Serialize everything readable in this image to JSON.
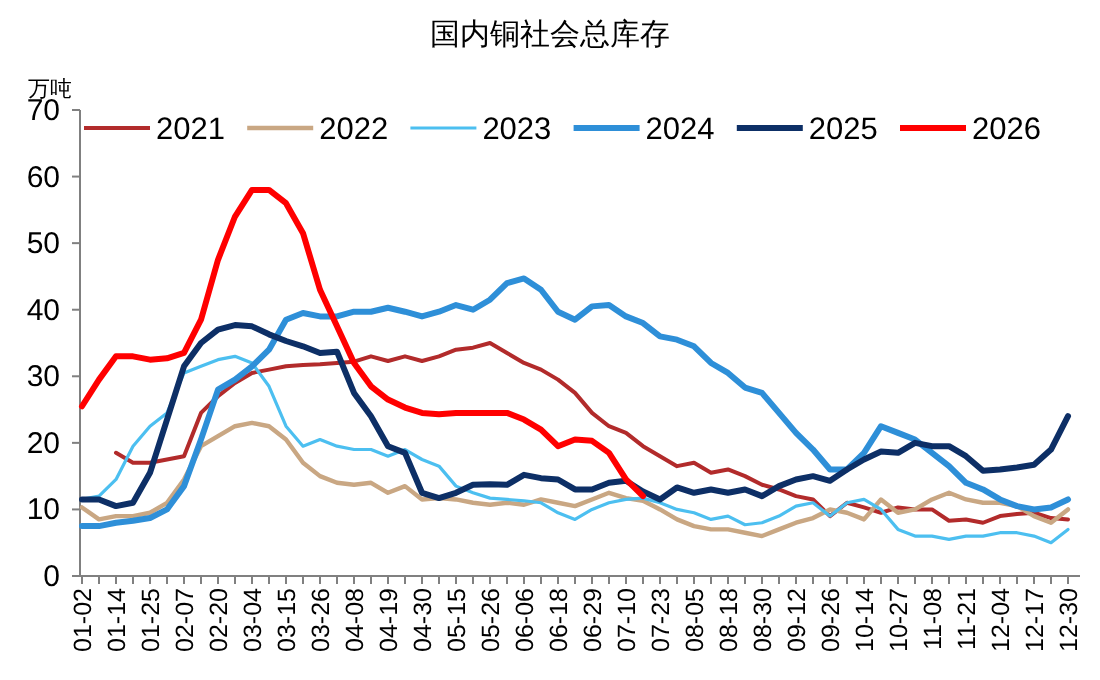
{
  "chart_data": {
    "type": "line",
    "title": "国内铜社会总库存",
    "ylabel": "万吨",
    "categories": [
      "01-02",
      null,
      "01-14",
      null,
      "01-25",
      null,
      "02-07",
      null,
      "02-20",
      null,
      "03-04",
      null,
      "03-15",
      null,
      "03-26",
      null,
      "04-08",
      null,
      "04-19",
      null,
      "04-30",
      null,
      "05-15",
      null,
      "05-26",
      null,
      "06-06",
      null,
      "06-18",
      null,
      "06-29",
      null,
      "07-10",
      null,
      "07-23",
      null,
      "08-05",
      null,
      "08-18",
      null,
      "08-30",
      null,
      "09-12",
      null,
      "09-26",
      null,
      "10-14",
      null,
      "10-27",
      null,
      "11-08",
      null,
      "11-21",
      null,
      "12-04",
      null,
      "12-17",
      null,
      "12-30"
    ],
    "ylim": [
      0,
      70
    ],
    "yticks": [
      0,
      10,
      20,
      30,
      40,
      50,
      60,
      70
    ],
    "grid": false,
    "legend": "top",
    "marker": "none",
    "line_style": "solid",
    "series": [
      {
        "name": "2021",
        "color": "#b22b2b",
        "values": [
          null,
          null,
          18.5,
          17,
          17,
          17.5,
          18,
          24.5,
          27,
          29,
          30.5,
          31,
          31.5,
          31.7,
          31.8,
          32,
          32.2,
          33,
          32.3,
          33,
          32.3,
          33,
          34,
          34.3,
          35,
          33.5,
          32,
          31,
          29.5,
          27.5,
          24.5,
          22.5,
          21.5,
          19.5,
          18,
          16.5,
          17,
          15.5,
          16,
          15,
          13.7,
          13,
          12,
          11.5,
          9,
          11,
          10.3,
          9.5,
          10.3,
          10,
          10,
          8.3,
          8.5,
          8,
          9,
          9.3,
          9.5,
          8.7,
          8.5
        ]
      },
      {
        "name": "2022",
        "color": "#c9a783",
        "values": [
          10.3,
          8.5,
          9,
          9,
          9.5,
          11,
          14.5,
          19.5,
          21,
          22.5,
          23,
          22.5,
          20.5,
          17,
          15,
          14,
          13.7,
          14,
          12.5,
          13.5,
          11.5,
          11.7,
          11.5,
          11,
          10.7,
          11,
          10.7,
          11.5,
          11,
          10.5,
          11.5,
          12.5,
          11.7,
          11.3,
          10,
          8.5,
          7.5,
          7,
          7,
          6.5,
          6,
          7,
          8,
          8.7,
          10,
          9.5,
          8.5,
          11.5,
          9.5,
          10,
          11.5,
          12.5,
          11.5,
          11,
          11,
          10.5,
          9,
          8,
          10
        ]
      },
      {
        "name": "2023",
        "color": "#4cbff0",
        "values": [
          11.5,
          12,
          14.5,
          19.5,
          22.5,
          24.5,
          30.5,
          31.5,
          32.5,
          33,
          32,
          28.5,
          22.5,
          19.5,
          20.5,
          19.5,
          19,
          19,
          18,
          19,
          17.5,
          16.5,
          13.5,
          12.5,
          11.7,
          11.5,
          11.3,
          11,
          9.5,
          8.5,
          10,
          11,
          11.5,
          11.7,
          11,
          10,
          9.5,
          8.5,
          9,
          7.7,
          8,
          9,
          10.5,
          11,
          9,
          11,
          11.5,
          10,
          7,
          6,
          6,
          5.5,
          6,
          6,
          6.5,
          6.5,
          6,
          5,
          7
        ]
      },
      {
        "name": "2024",
        "color": "#2e8fd8",
        "values": [
          7.5,
          7.5,
          8,
          8.3,
          8.7,
          10,
          13.5,
          20.5,
          28,
          29.5,
          31.5,
          34,
          38.5,
          39.5,
          39,
          39,
          39.7,
          39.7,
          40.3,
          39.7,
          39,
          39.7,
          40.7,
          40,
          41.5,
          44,
          44.7,
          43,
          39.7,
          38.5,
          40.5,
          40.7,
          39,
          38,
          36,
          35.5,
          34.5,
          32,
          30.5,
          28.3,
          27.5,
          24.5,
          21.5,
          19,
          16,
          16,
          18.5,
          22.5,
          21.5,
          20.5,
          18.5,
          16.5,
          14,
          13,
          11.5,
          10.5,
          10,
          10.3,
          11.5
        ]
      },
      {
        "name": "2025",
        "color": "#0d2f66",
        "values": [
          11.5,
          11.5,
          10.5,
          11,
          15.5,
          23.5,
          31.5,
          35,
          37,
          37.7,
          37.5,
          36.3,
          35.3,
          34.5,
          33.5,
          33.7,
          27.5,
          24,
          19.5,
          18.5,
          12.5,
          11.7,
          12.5,
          13.7,
          13.8,
          13.7,
          15.2,
          14.7,
          14.5,
          13,
          13,
          14,
          14.3,
          12.7,
          11.5,
          13.3,
          12.5,
          13,
          12.5,
          13,
          12,
          13.5,
          14.5,
          15,
          14.3,
          16,
          17.5,
          18.7,
          18.5,
          20,
          19.5,
          19.5,
          18,
          15.8,
          16,
          16.3,
          16.7,
          19,
          24
        ]
      },
      {
        "name": "2026",
        "color": "#ff0000",
        "values": [
          25.5,
          29.5,
          33,
          33,
          32.5,
          32.7,
          33.5,
          38.5,
          47.5,
          54,
          58,
          58,
          56,
          51.5,
          43,
          37.5,
          32,
          28.5,
          26.5,
          25.3,
          24.5,
          24.3,
          24.5,
          24.5,
          24.5,
          24.5,
          23.5,
          22,
          19.5,
          20.5,
          20.3,
          18.5,
          14.5,
          12,
          null,
          null,
          null,
          null,
          null,
          null,
          null,
          null,
          null,
          null,
          null,
          null,
          null,
          null,
          null,
          null,
          null,
          null,
          null,
          null,
          null,
          null,
          null,
          null,
          null
        ]
      }
    ]
  }
}
